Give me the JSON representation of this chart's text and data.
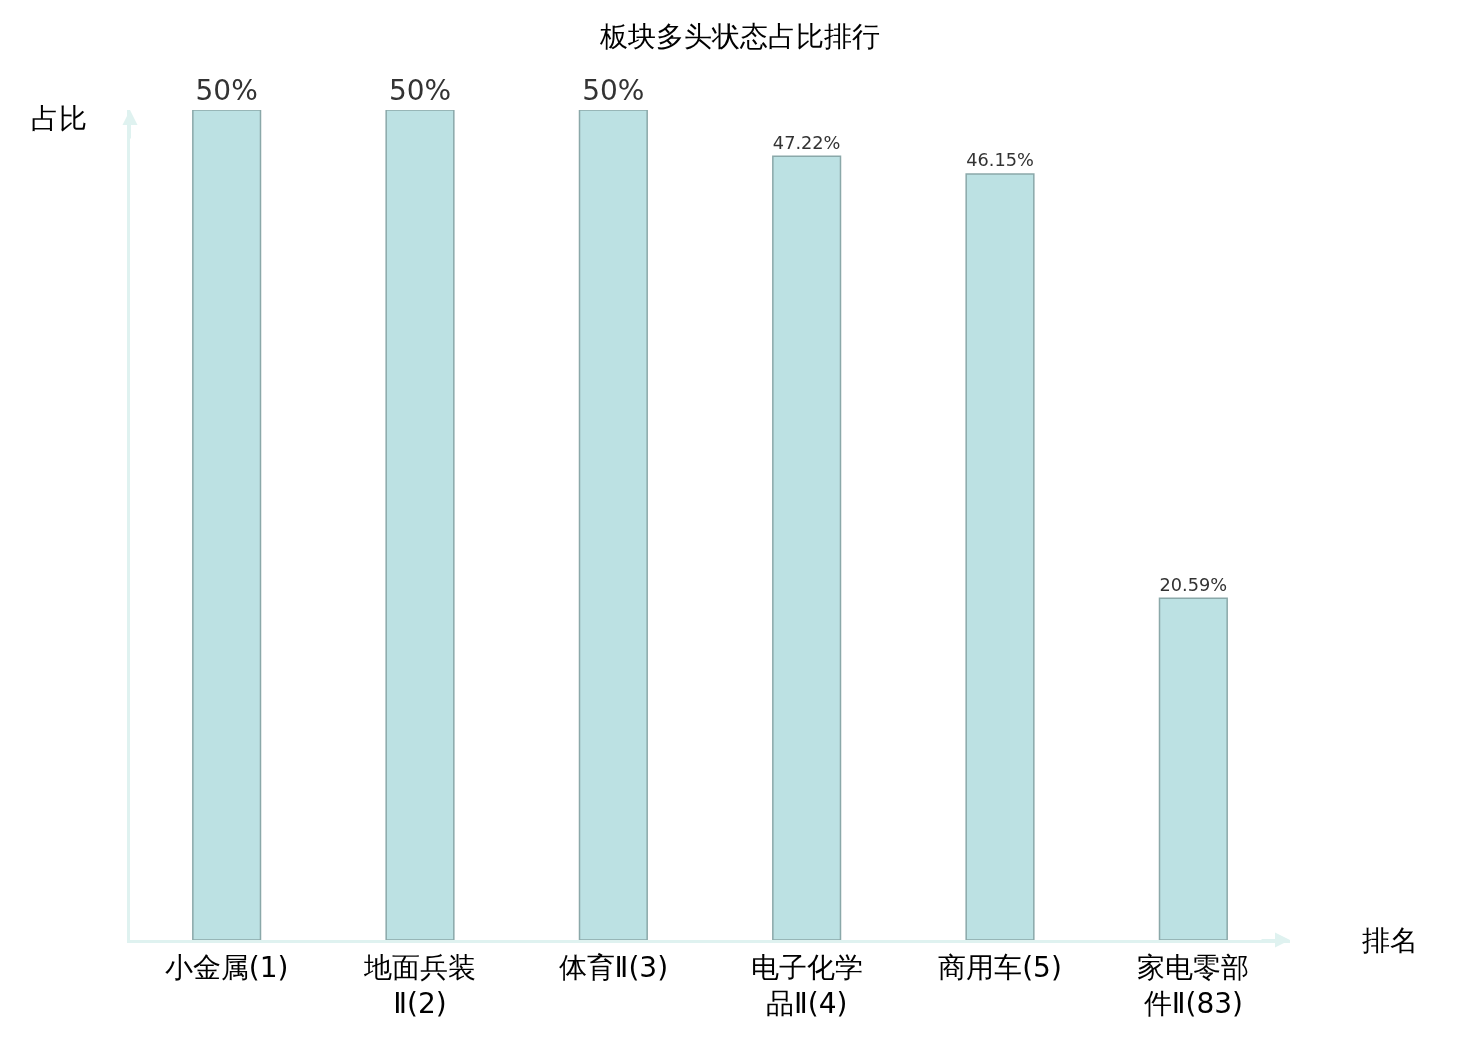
{
  "chart_data": {
    "type": "bar",
    "title": "板块多头状态占比排行",
    "xlabel": "排名",
    "ylabel": "占比",
    "categories": [
      "小金属(1)",
      "地面兵装Ⅱ(2)",
      "体育Ⅱ(3)",
      "电子化学品Ⅱ(4)",
      "商用车(5)",
      "家电零部件Ⅱ(83)"
    ],
    "values": [
      50,
      50,
      50,
      47.22,
      46.15,
      20.59
    ],
    "value_labels": [
      "50%",
      "50%",
      "50%",
      "47.22%",
      "46.15%",
      "20.59%"
    ],
    "color": "#bce1e3",
    "ylim": [
      0,
      50
    ],
    "tick_labels": "x",
    "grid": false,
    "legend": false
  }
}
